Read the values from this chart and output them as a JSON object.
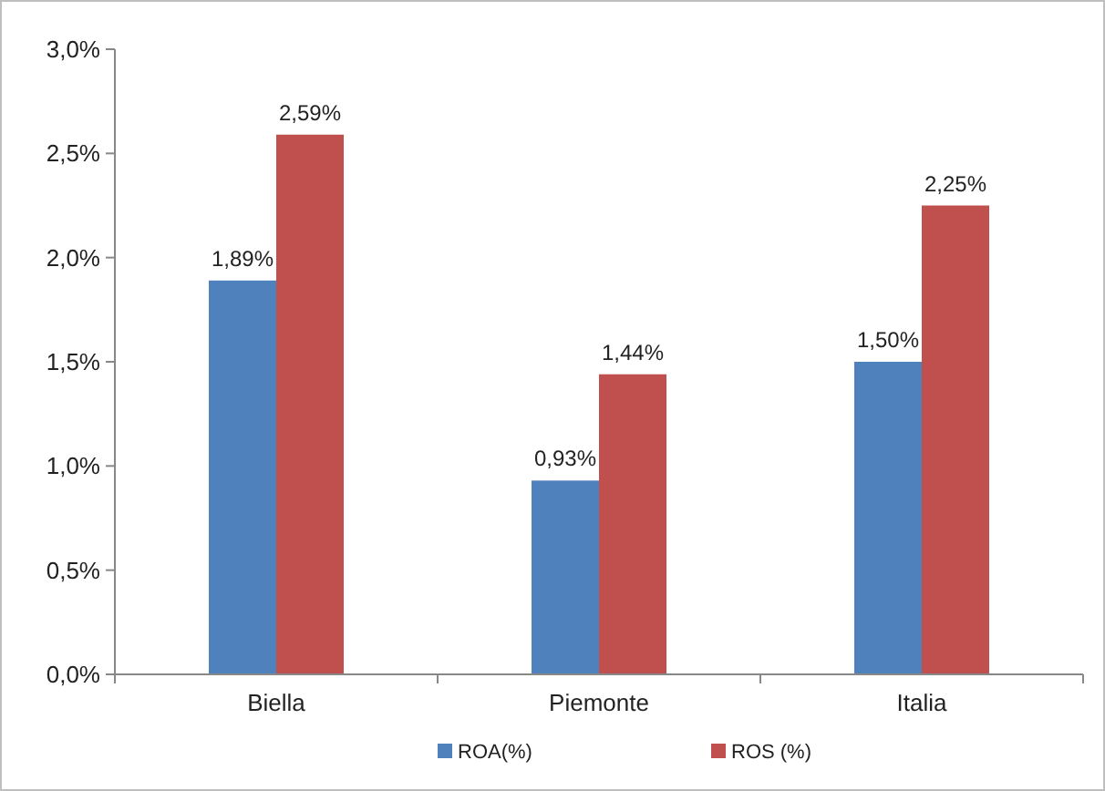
{
  "chart_data": {
    "type": "bar",
    "categories": [
      "Biella",
      "Piemonte",
      "Italia"
    ],
    "series": [
      {
        "name": "ROA(%)",
        "color": "#4f81bd",
        "values": [
          1.89,
          0.93,
          1.5
        ],
        "value_labels": [
          "1,89%",
          "0,93%",
          "1,50%"
        ]
      },
      {
        "name": "ROS (%)",
        "color": "#c0504d",
        "values": [
          2.59,
          1.44,
          2.25
        ],
        "value_labels": [
          "2,59%",
          "1,44%",
          "2,25%"
        ]
      }
    ],
    "ylim": [
      0,
      3
    ],
    "yticks": [
      {
        "value": 0,
        "label": "0,0%"
      },
      {
        "value": 0.5,
        "label": "0,5%"
      },
      {
        "value": 1,
        "label": "1,0%"
      },
      {
        "value": 1.5,
        "label": "1,5%"
      },
      {
        "value": 2,
        "label": "2,0%"
      },
      {
        "value": 2.5,
        "label": "2,5%"
      },
      {
        "value": 3,
        "label": "3,0%"
      }
    ],
    "grid": false,
    "legend": "bottom"
  }
}
